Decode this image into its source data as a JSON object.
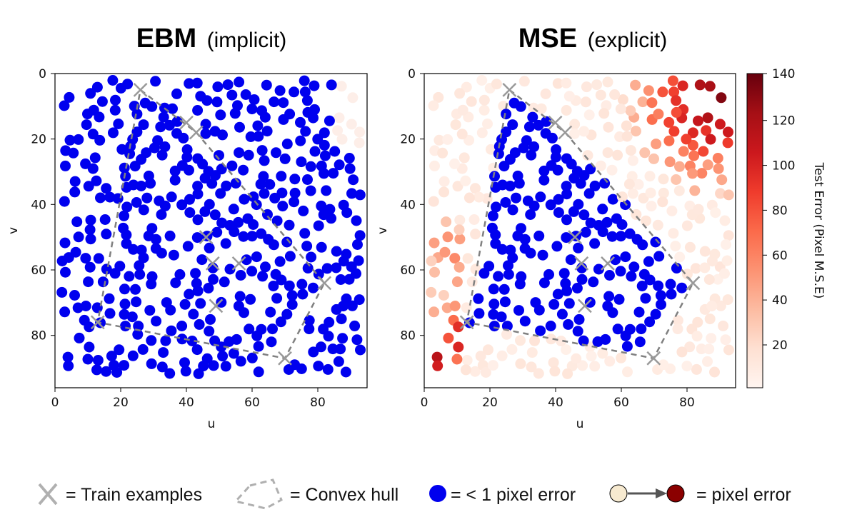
{
  "colors": {
    "good": "#0000ee",
    "hull": "#808080",
    "train": "#999999",
    "cmap": [
      "#fff5f0",
      "#fee0d2",
      "#fcbba1",
      "#fc9272",
      "#fb6a4a",
      "#ef3b2c",
      "#cb181d",
      "#a50f15",
      "#67000d"
    ]
  },
  "legend": {
    "train_label": "= Train examples",
    "hull_label": "= Convex hull",
    "good_label": "= < 1 pixel error",
    "gradient_label": "= pixel error"
  },
  "chart_data": [
    {
      "type": "scatter",
      "title_bold": "EBM",
      "title_rest": "(implicit)",
      "xlabel": "u",
      "ylabel": "v",
      "xlim": [
        0,
        95
      ],
      "ylim": [
        96,
        0
      ],
      "xticks": [
        "0",
        "20",
        "40",
        "60",
        "80"
      ],
      "yticks": [
        "0",
        "20",
        "40",
        "60",
        "80"
      ]
    },
    {
      "type": "scatter",
      "title_bold": "MSE",
      "title_rest": "(explicit)",
      "xlabel": "u",
      "ylabel": "v",
      "xlim": [
        0,
        95
      ],
      "ylim": [
        96,
        0
      ],
      "xticks": [
        "0",
        "20",
        "40",
        "60",
        "80"
      ],
      "yticks": [
        "0",
        "20",
        "40",
        "60",
        "80"
      ],
      "colorbar": {
        "label": "Test Error (Pixel M.S.E)",
        "range": [
          0,
          140
        ],
        "ticks": [
          "20",
          "40",
          "60",
          "80",
          "100",
          "120",
          "140"
        ]
      }
    }
  ],
  "train_examples": [
    [
      26,
      5
    ],
    [
      40,
      15
    ],
    [
      43,
      18
    ],
    [
      46,
      50
    ],
    [
      48,
      58
    ],
    [
      56,
      58
    ],
    [
      49,
      71
    ],
    [
      13,
      76
    ],
    [
      70,
      87
    ],
    [
      82,
      64
    ]
  ],
  "convex_hull": [
    [
      26,
      5
    ],
    [
      43,
      18
    ],
    [
      82,
      64
    ],
    [
      70,
      87
    ],
    [
      13,
      76
    ]
  ]
}
